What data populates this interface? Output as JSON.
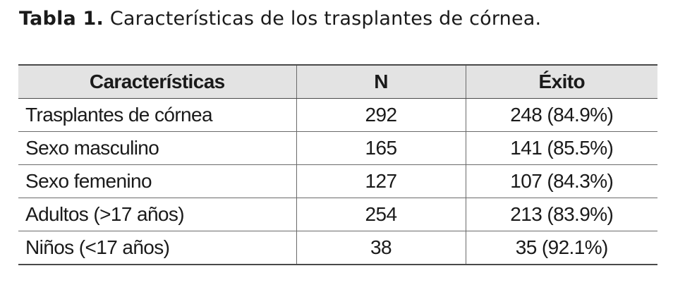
{
  "caption": {
    "label": "Tabla 1.",
    "text": "Características de los trasplantes de córnea."
  },
  "table": {
    "headers": [
      "Características",
      "N",
      "Éxito"
    ],
    "rows": [
      [
        "Trasplantes de córnea",
        "292",
        "248 (84.9%)"
      ],
      [
        "Sexo masculino",
        "165",
        "141 (85.5%)"
      ],
      [
        "Sexo femenino",
        "127",
        "107 (84.3%)"
      ],
      [
        "Adultos (>17 años)",
        "254",
        "213 (83.9%)"
      ],
      [
        "Niños (<17 años)",
        "38",
        "35 (92.1%)"
      ]
    ]
  }
}
